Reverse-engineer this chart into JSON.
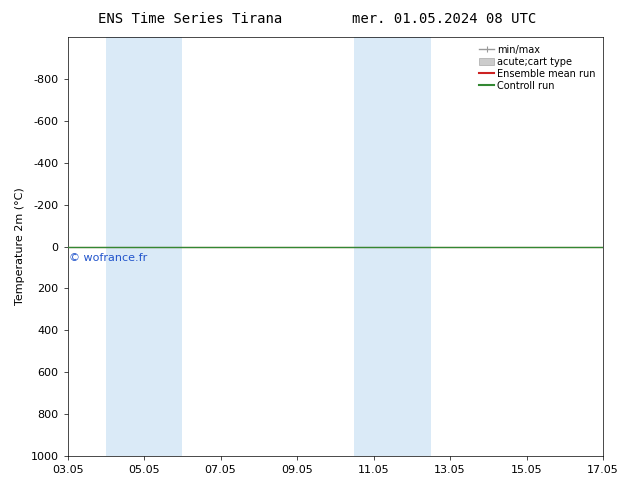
{
  "title_left": "ENS Time Series Tirana",
  "title_right": "mer. 01.05.2024 08 UTC",
  "ylabel": "Temperature 2m (°C)",
  "ylim_bottom": 1000,
  "ylim_top": -1000,
  "y_ticks": [
    -800,
    -600,
    -400,
    -200,
    0,
    200,
    400,
    600,
    800,
    1000
  ],
  "xlim_start": 3,
  "xlim_end": 17,
  "x_tick_labels": [
    "03.05",
    "05.05",
    "07.05",
    "09.05",
    "11.05",
    "13.05",
    "15.05",
    "17.05"
  ],
  "x_tick_positions": [
    3,
    5,
    7,
    9,
    11,
    13,
    15,
    17
  ],
  "shaded_bands": [
    {
      "x_start": 4.0,
      "x_end": 5.0
    },
    {
      "x_start": 5.0,
      "x_end": 6.0
    },
    {
      "x_start": 10.5,
      "x_end": 11.5
    },
    {
      "x_start": 11.5,
      "x_end": 12.5
    }
  ],
  "band_color": "#daeaf7",
  "green_line_color": "#338833",
  "red_line_color": "#cc2222",
  "watermark": "© wofrance.fr",
  "watermark_color": "#2255cc",
  "watermark_fontsize": 8,
  "legend_entries": [
    "min/max",
    "acute;cart type",
    "Ensemble mean run",
    "Controll run"
  ],
  "legend_line_color": "#999999",
  "legend_patch_color": "#cccccc",
  "background_color": "#ffffff",
  "title_fontsize": 10,
  "tick_fontsize": 8,
  "ylabel_fontsize": 8
}
